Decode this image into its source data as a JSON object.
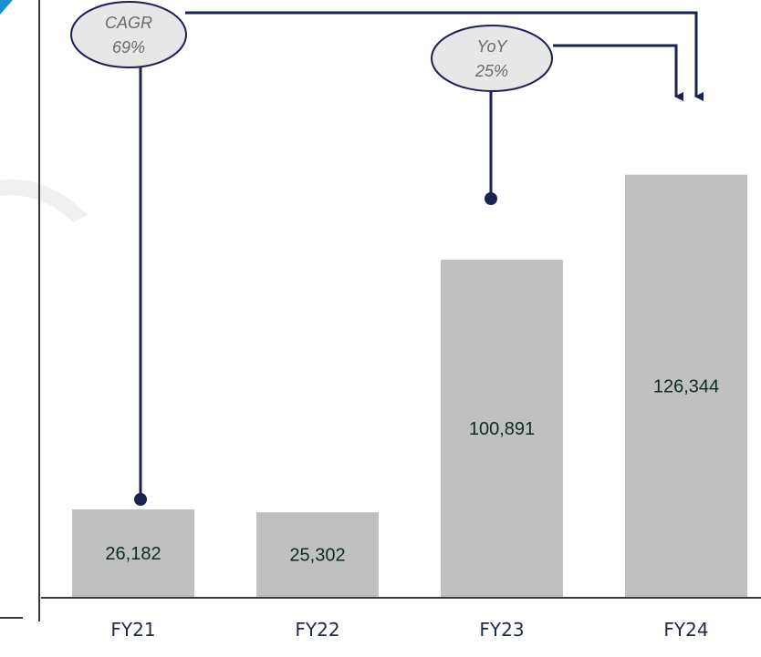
{
  "colors": {
    "bar": "#c0c0c0",
    "connector": "#1b2150",
    "bubble_fill": "#e7e7e7",
    "axis": "#3a3a3a",
    "accent_corner": "#1a8fd0",
    "watermark": "#f0f0f0"
  },
  "chart_data": {
    "type": "bar",
    "categories": [
      "FY21",
      "FY22",
      "FY23",
      "FY24"
    ],
    "values": [
      26182,
      25302,
      100891,
      126344
    ],
    "data_labels": [
      "26,182",
      "25,302",
      "100,891",
      "126,344"
    ],
    "title": "",
    "xlabel": "",
    "ylabel": "",
    "ylim": [
      0,
      150000
    ],
    "grid": false,
    "legend": "none",
    "annotations": [
      {
        "label": "CAGR",
        "value": "69%",
        "from": "FY21",
        "to": "FY24"
      },
      {
        "label": "YoY",
        "value": "25%",
        "from": "FY23",
        "to": "FY24"
      }
    ]
  }
}
